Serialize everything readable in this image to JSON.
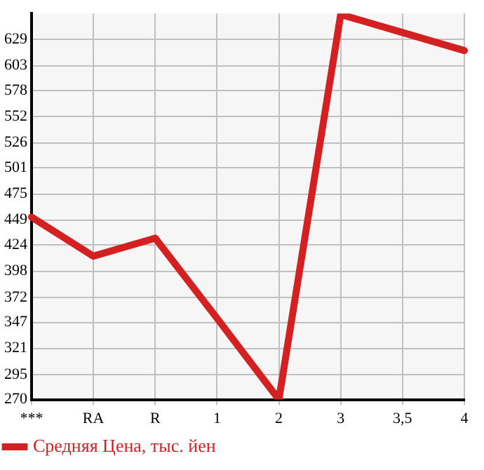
{
  "chart_data": {
    "type": "line",
    "categories": [
      "***",
      "RA",
      "R",
      "1",
      "2",
      "3",
      "3,5",
      "4"
    ],
    "series": [
      {
        "name": "Средняя Цена, тыс. йен",
        "color": "#d42020",
        "values": [
          452,
          413,
          431,
          351,
          270,
          654,
          636,
          618
        ]
      }
    ],
    "ylim": [
      270,
      655
    ],
    "yticks": [
      270,
      295,
      321,
      347,
      372,
      398,
      424,
      449,
      475,
      501,
      526,
      552,
      578,
      603,
      629
    ],
    "grid": true,
    "legend": "bottom",
    "marker": "none",
    "line_style": "solid"
  }
}
